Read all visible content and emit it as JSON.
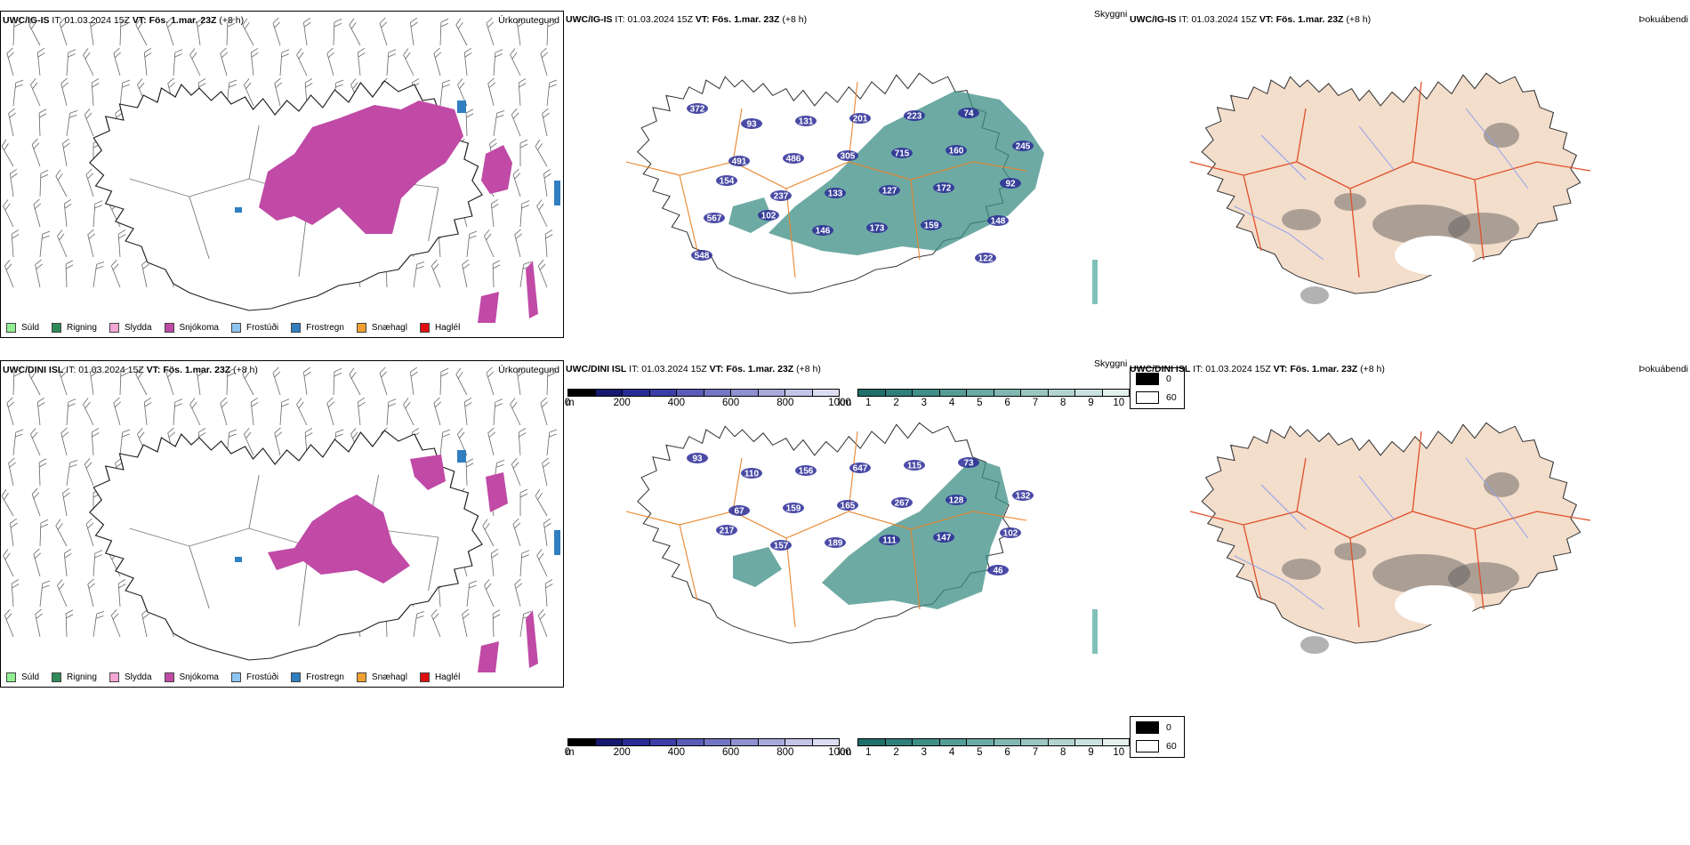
{
  "rows": [
    {
      "model": "UWC/IG-IS",
      "it_label": "IT:",
      "it": "01.03.2024 15Z",
      "vt_label": "VT:",
      "vt": "Fös. 1.mar. 23Z",
      "lead": "(+8 h)",
      "snow_labels": [
        "372",
        "93",
        "131",
        "201",
        "223",
        "74",
        "245",
        "491",
        "486",
        "305",
        "715",
        "160",
        "92",
        "154",
        "237",
        "133",
        "127",
        "172",
        "148",
        "567",
        "102",
        "146",
        "173",
        "159",
        "122",
        "548"
      ]
    },
    {
      "model": "UWC/DINI ISL",
      "it_label": "IT:",
      "it": "01.03.2024 15Z",
      "vt_label": "VT:",
      "vt": "Fös. 1.mar. 23Z",
      "lead": "(+8 h)",
      "snow_labels": [
        "93",
        "110",
        "156",
        "647",
        "115",
        "73",
        "132",
        "67",
        "159",
        "165",
        "267",
        "128",
        "102",
        "217",
        "157",
        "189",
        "111",
        "147",
        "46"
      ]
    }
  ],
  "panel_titles": {
    "precip": "Úrkomutegund",
    "snow": "Skyggni",
    "cloud": "Þokuábendi"
  },
  "precip_legend": [
    {
      "label": "Súld",
      "color": "#90ee90"
    },
    {
      "label": "Rigning",
      "color": "#2e8b57"
    },
    {
      "label": "Slydda",
      "color": "#f4a6d4"
    },
    {
      "label": "Snjókoma",
      "color": "#c04aa6"
    },
    {
      "label": "Frostúði",
      "color": "#8ec4f0"
    },
    {
      "label": "Frostregn",
      "color": "#2f7fc1"
    },
    {
      "label": "Snæhagl",
      "color": "#f0a030"
    },
    {
      "label": "Haglél",
      "color": "#e01010"
    }
  ],
  "colorbar_m": {
    "unit": "m",
    "ticks": [
      "0",
      "200",
      "400",
      "600",
      "800",
      "1000"
    ],
    "colors": [
      "#000000",
      "#161870",
      "#2a2c96",
      "#3c3ea8",
      "#5a5cb8",
      "#7476c4",
      "#8e90d0",
      "#a8aadc",
      "#c2c4e8",
      "#dcdcf2"
    ]
  },
  "colorbar_km": {
    "unit": "km",
    "ticks": [
      "1",
      "2",
      "3",
      "4",
      "5",
      "6",
      "7",
      "8",
      "9",
      "10"
    ],
    "colors": [
      "#1f6f6a",
      "#2f7f7a",
      "#3f8f88",
      "#559c96",
      "#6aaaa4",
      "#82b8b3",
      "#9ac6c1",
      "#b2d4d0",
      "#cae2df",
      "#e4f0ee"
    ]
  },
  "cloud_legend": [
    {
      "label": "0",
      "color": "#000000"
    },
    {
      "label": "60",
      "color": "#ffffff"
    }
  ]
}
